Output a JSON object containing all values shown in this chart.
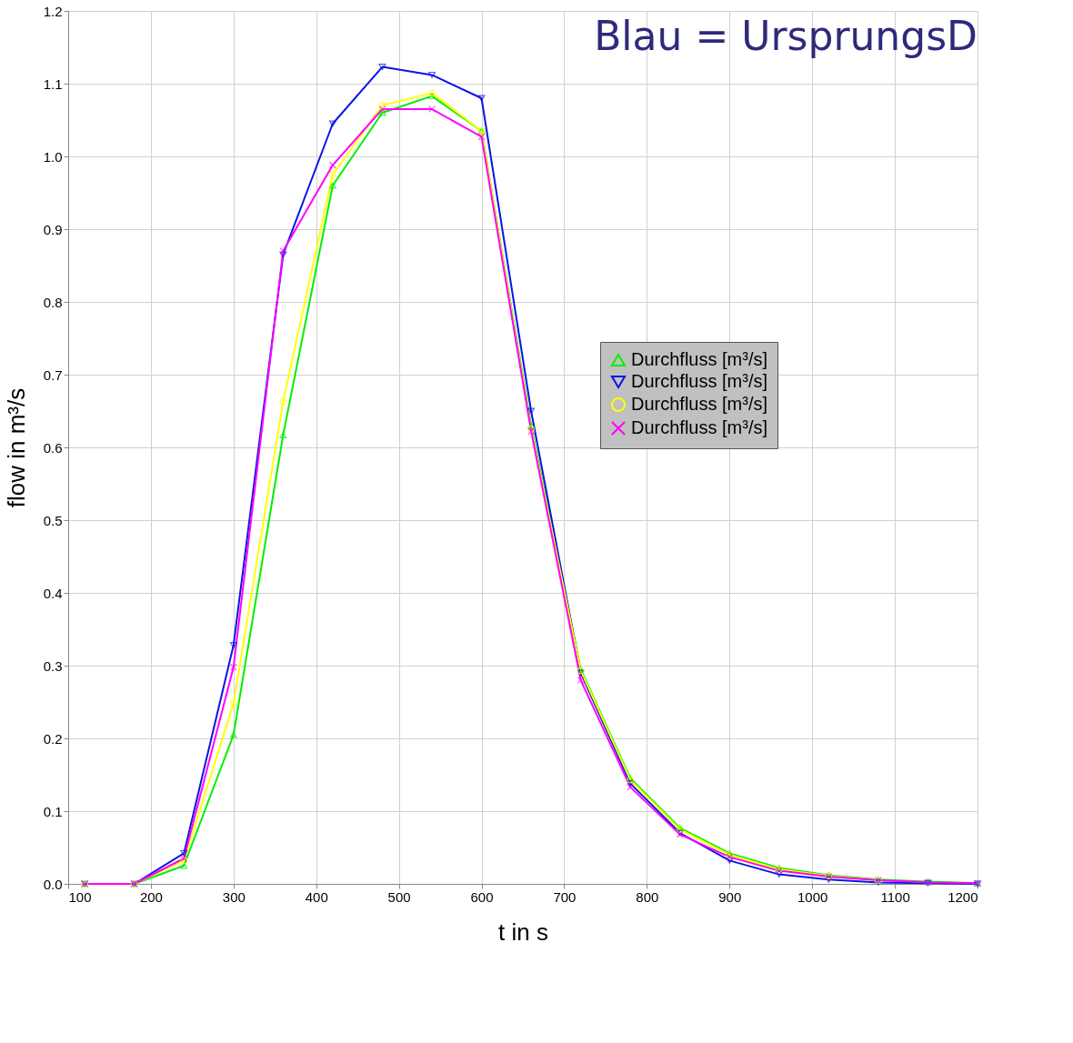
{
  "chart_data": {
    "type": "line",
    "xlabel": "t in s",
    "ylabel": "flow in m³/s",
    "annotations": [
      "Blau = UrsprungsD"
    ],
    "x": [
      120,
      180,
      240,
      300,
      360,
      420,
      480,
      540,
      600,
      660,
      720,
      780,
      840,
      900,
      960,
      1020,
      1080,
      1140,
      1200
    ],
    "series": [
      {
        "name": "Durchfluss [m³/s]",
        "color": "#00ee00",
        "marker": "triangle",
        "values": [
          0,
          0,
          0.025,
          0.205,
          0.617,
          0.96,
          1.06,
          1.083,
          1.035,
          0.63,
          0.295,
          0.145,
          0.077,
          0.042,
          0.022,
          0.012,
          0.006,
          0.003,
          0.001
        ]
      },
      {
        "name": "Durchfluss [m³/s]",
        "color": "#0a14e6",
        "marker": "triangle-down",
        "values": [
          0,
          0,
          0.042,
          0.328,
          0.865,
          1.045,
          1.123,
          1.112,
          1.08,
          0.65,
          0.29,
          0.138,
          0.07,
          0.032,
          0.013,
          0.006,
          0.002,
          0.001,
          0
        ]
      },
      {
        "name": "Durchfluss [m³/s]",
        "color": "#ffff00",
        "marker": "circle",
        "values": [
          0,
          0,
          0.032,
          0.248,
          0.663,
          0.975,
          1.07,
          1.087,
          1.035,
          0.625,
          0.293,
          0.143,
          0.075,
          0.04,
          0.02,
          0.011,
          0.005,
          null,
          null
        ]
      },
      {
        "name": "Durchfluss [m³/s]",
        "color": "#ff00ff",
        "marker": "cross",
        "values": [
          0,
          0,
          0.035,
          0.298,
          0.87,
          0.988,
          1.065,
          1.065,
          1.027,
          0.622,
          0.28,
          0.133,
          0.068,
          0.037,
          0.018,
          0.01,
          0.005,
          0.002,
          0.001
        ]
      }
    ],
    "xlim": [
      100,
      1200
    ],
    "xticks": [
      100,
      200,
      300,
      400,
      500,
      600,
      700,
      800,
      900,
      1000,
      1100,
      1200
    ],
    "ylim": [
      0,
      1.2
    ],
    "yticks": [
      {
        "value": 0,
        "label": "0.0"
      },
      0.1,
      0.2,
      0.3,
      0.4,
      0.5,
      0.6,
      0.7,
      0.8,
      0.9,
      {
        "value": 1,
        "label": "1.0"
      },
      1.1,
      1.2
    ],
    "grid": true,
    "legend": "right",
    "line_style": "solid"
  }
}
